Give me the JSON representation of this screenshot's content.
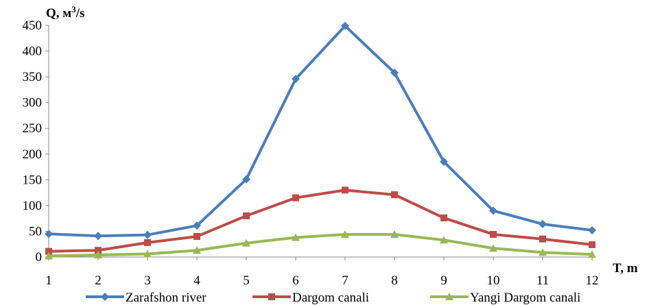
{
  "chart_data": {
    "type": "line",
    "title": "",
    "ylabel_prefix": "Q, м",
    "ylabel_sup": "3",
    "ylabel_suffix": "/s",
    "xlabel": "T, m",
    "x": [
      1,
      2,
      3,
      4,
      5,
      6,
      7,
      8,
      9,
      10,
      11,
      12
    ],
    "ylim": [
      0,
      450
    ],
    "yticks": [
      0,
      50,
      100,
      150,
      200,
      250,
      300,
      350,
      400,
      450
    ],
    "grid": false,
    "legend_position": "bottom",
    "series": [
      {
        "name": "Zarafshon river",
        "color": "#4a7ebb",
        "marker": "diamond",
        "values": [
          45,
          41,
          43,
          61,
          151,
          346,
          449,
          358,
          185,
          90,
          64,
          52
        ]
      },
      {
        "name": "Dargom canali",
        "color": "#be4b48",
        "marker": "square",
        "values": [
          11,
          13,
          28,
          40,
          80,
          115,
          130,
          121,
          76,
          44,
          35,
          24
        ]
      },
      {
        "name": "Yangi Dargom canali",
        "color": "#98b954",
        "marker": "triangle",
        "values": [
          2,
          4,
          6,
          13,
          27,
          38,
          44,
          44,
          33,
          17,
          9,
          5
        ]
      }
    ]
  }
}
